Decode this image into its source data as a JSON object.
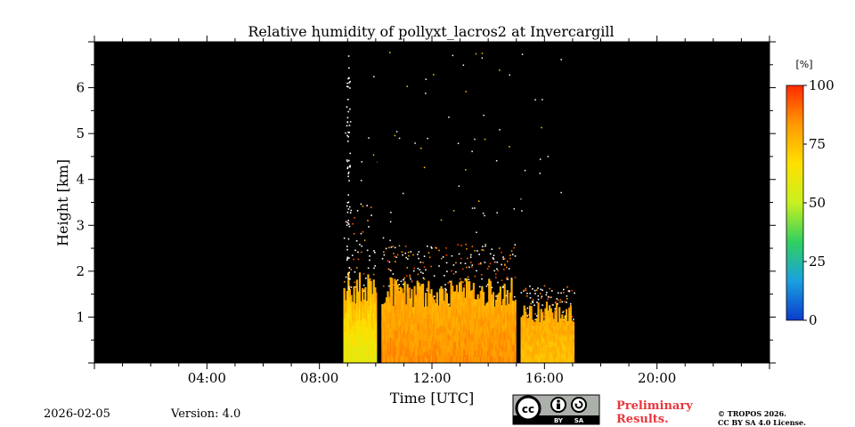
{
  "chart_data": {
    "type": "heatmap",
    "title": "Relative humidity of pollyxt_lacros2 at Invercargill",
    "xlabel": "Time [UTC]",
    "ylabel": "Height [km]",
    "x_unit": "hours UTC",
    "xlim": [
      0,
      24
    ],
    "ylim": [
      0,
      7
    ],
    "x_ticks": [
      4,
      8,
      12,
      16,
      20
    ],
    "x_tick_labels": [
      "04:00",
      "08:00",
      "12:00",
      "16:00",
      "20:00"
    ],
    "y_ticks": [
      1,
      2,
      3,
      4,
      5,
      6
    ],
    "y_tick_labels": [
      "1",
      "2",
      "3",
      "4",
      "5",
      "6"
    ],
    "colorbar": {
      "label": "[%]",
      "range": [
        0,
        100
      ],
      "ticks": [
        0,
        25,
        50,
        75,
        100
      ],
      "tick_labels": [
        "0",
        "25",
        "50",
        "75",
        "100"
      ],
      "colors": [
        "#0a3ccc",
        "#1aa0e0",
        "#30d060",
        "#c8f020",
        "#ffe000",
        "#ff9a00",
        "#ff2a00"
      ]
    },
    "background_color": "#000000",
    "data_segments": [
      {
        "start": 8.85,
        "end": 10.05,
        "rh_surface": 58,
        "rh_top": 80,
        "moist_top_km": 1.6,
        "speckle_top_km": 3.6
      },
      {
        "start": 10.2,
        "end": 15.0,
        "rh_surface": 85,
        "rh_top": 78,
        "moist_top_km": 1.5,
        "speckle_top_km": 2.6
      },
      {
        "start": 15.15,
        "end": 17.05,
        "rh_surface": 75,
        "rh_top": 80,
        "moist_top_km": 1.1,
        "speckle_top_km": 1.7
      }
    ],
    "gaps": [
      [
        10.05,
        10.2
      ],
      [
        15.0,
        15.15
      ]
    ]
  },
  "footer": {
    "date": "2026-02-05",
    "version": "Version: 4.0",
    "cc_badge": "cc BY SA",
    "preliminary_line1": "Preliminary",
    "preliminary_line2": "Results.",
    "copyright_line1": "© TROPOS 2026.",
    "copyright_line2": "CC BY SA 4.0 License."
  }
}
